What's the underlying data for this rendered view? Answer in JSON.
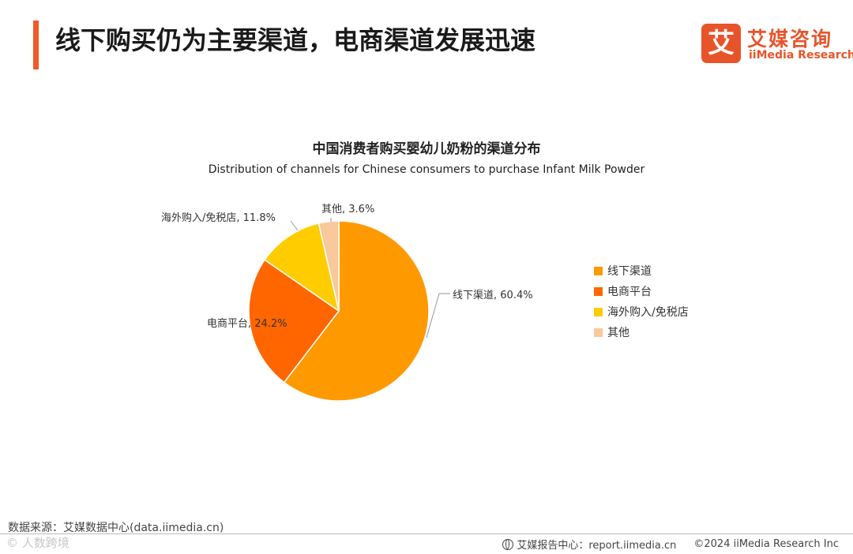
{
  "header": {
    "title": "线下购买仍为主要渠道，电商渠道发展迅速",
    "logo_cn": "艾媒咨询",
    "logo_en": "iiMedia Research",
    "logo_mark": "艾"
  },
  "chart_data": {
    "type": "pie",
    "title": "中国消费者购买婴幼儿奶粉的渠道分布",
    "subtitle": "Distribution of channels for Chinese consumers to purchase Infant Milk Powder",
    "slices": [
      {
        "label": "线下渠道",
        "value": 60.4,
        "display": "线下渠道, 60.4%",
        "color": "#ff9900"
      },
      {
        "label": "电商平台",
        "value": 24.2,
        "display": "电商平台, 24.2%",
        "color": "#ff6600"
      },
      {
        "label": "海外购入/免税店",
        "value": 11.8,
        "display": "海外购入/免税店, 11.8%",
        "color": "#ffcc00"
      },
      {
        "label": "其他",
        "value": 3.6,
        "display": "其他, 3.6%",
        "color": "#f9c89b"
      }
    ],
    "legend_position": "right"
  },
  "footer": {
    "source": "数据来源：艾媒数据中心(data.iimedia.cn)",
    "report_center": "艾媒报告中心：report.iimedia.cn",
    "copyright": "©2024  iiMedia Research  Inc",
    "watermark": "© 人数跨境"
  }
}
